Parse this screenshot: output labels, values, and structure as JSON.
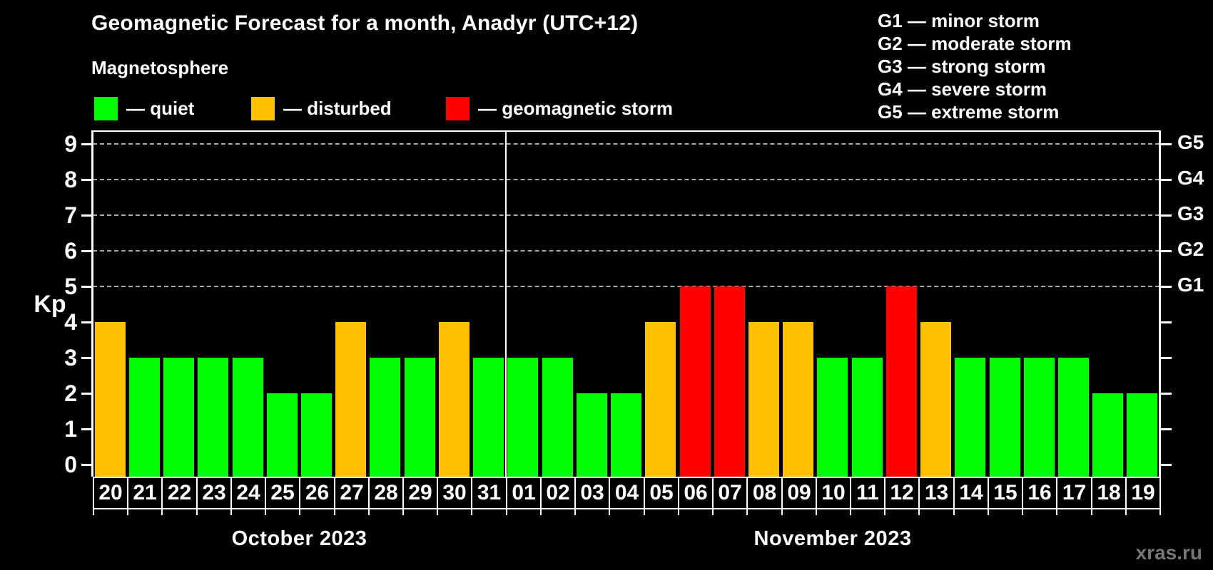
{
  "title": "Geomagnetic Forecast for a month, Anadyr (UTC+12)",
  "subtitle": "Magnetosphere",
  "legend": {
    "items": [
      {
        "name": "quiet",
        "label": "— quiet",
        "color": "#00ff00"
      },
      {
        "name": "disturbed",
        "label": "— disturbed",
        "color": "#ffc000"
      },
      {
        "name": "storm",
        "label": "— geomagnetic storm",
        "color": "#ff0000"
      }
    ]
  },
  "g_legend": [
    "G1 — minor storm",
    "G2 — moderate storm",
    "G3 — strong storm",
    "G4 — severe storm",
    "G5 — extreme storm"
  ],
  "axis": {
    "y_label": "Kp",
    "y_ticks": [
      "0",
      "1",
      "2",
      "3",
      "4",
      "5",
      "6",
      "7",
      "8",
      "9"
    ]
  },
  "watermark": "xras.ru",
  "chart_data": {
    "type": "bar",
    "title": "Geomagnetic Forecast for a month, Anadyr (UTC+12)",
    "xlabel": "",
    "ylabel": "Kp",
    "ylim": [
      0,
      9
    ],
    "grid": "horizontal dashed lines at Kp 5-9",
    "gridlines_at": [
      5,
      6,
      7,
      8,
      9
    ],
    "right_axis_labels": [
      {
        "value": 5,
        "label": "G1"
      },
      {
        "value": 6,
        "label": "G2"
      },
      {
        "value": 7,
        "label": "G3"
      },
      {
        "value": 8,
        "label": "G4"
      },
      {
        "value": 9,
        "label": "G5"
      }
    ],
    "colors": {
      "quiet": "#00ff00",
      "disturbed": "#ffc000",
      "storm": "#ff0000"
    },
    "color_rules": {
      "disturbed_min": 4,
      "storm_min": 5
    },
    "series": [
      {
        "month": "October 2023",
        "days": [
          "20",
          "21",
          "22",
          "23",
          "24",
          "25",
          "26",
          "27",
          "28",
          "29",
          "30",
          "31"
        ],
        "values": [
          4,
          3,
          3,
          3,
          3,
          2,
          2,
          4,
          3,
          3,
          4,
          3
        ]
      },
      {
        "month": "November 2023",
        "days": [
          "01",
          "02",
          "03",
          "04",
          "05",
          "06",
          "07",
          "08",
          "09",
          "10",
          "11",
          "12",
          "13",
          "14",
          "15",
          "16",
          "17",
          "18",
          "19"
        ],
        "values": [
          3,
          3,
          2,
          2,
          4,
          5,
          5,
          4,
          4,
          3,
          3,
          5,
          4,
          3,
          3,
          3,
          3,
          2,
          2
        ]
      }
    ]
  }
}
